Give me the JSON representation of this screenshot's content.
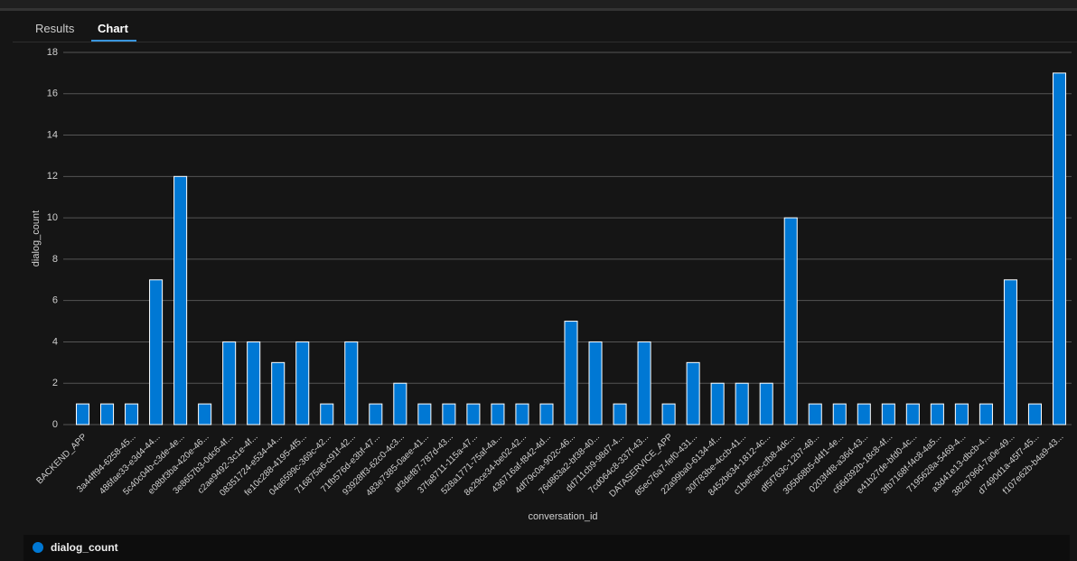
{
  "tabs": [
    "Results",
    "Chart"
  ],
  "chart_data": {
    "type": "bar",
    "categories": [
      "BACKEND_APP",
      null,
      "3a44ff94-6258-45...",
      "486fae33-e3d4-44...",
      "5c40c04b-c3de-4e...",
      "e08bf3ba-420e-46...",
      "3e8657b3-0dc6-4f...",
      "c2ae9492-3c1e-4f...",
      "08351724-e534-44...",
      "fe10c288-4195-4f5...",
      "04a6599c-369c-42...",
      "716875a6-c91f-42...",
      "71fb576d-e3bf-47...",
      "93928ff3-62c0-4c3...",
      "483e7385-0aee-41...",
      "af3def87-787d-43...",
      "37fa8711-115a-47...",
      "528a1771-75af-4a...",
      "8e29ce34-be02-42...",
      "436716af-f842-4d...",
      "4df79c0a-902c-46...",
      "76d863a2-bf38-40...",
      "dd711cb9-98d7-4...",
      "7cd064c8-337f-43...",
      "DATASERVICE_APP",
      "85ec76a7-fef0-431...",
      "22a99ba0-6134-4f...",
      "30f783be-4ccb-41...",
      "8452b634-1812-4c...",
      "c1bef5ac-cfb8-4dc...",
      "df5f763c-12b7-48...",
      "305b68b5-d4f1-4e...",
      "0203f4f8-a36d-43...",
      "c66d392b-18c8-4f...",
      "e41b27de-bfd0-4c...",
      "3fb7168f-f4c8-4a5...",
      "7195628a-5469-4...",
      "a3d41e13-dbcb-4...",
      "382a796d-7a0e-49...",
      "d7490d1a-45f7-45...",
      "f107e62b-b4a9-43..."
    ],
    "series": [
      {
        "name": "dialog_count",
        "color": "#0078d4",
        "values": [
          1,
          1,
          1,
          7,
          12,
          1,
          4,
          4,
          3,
          4,
          1,
          4,
          1,
          2,
          1,
          1,
          1,
          1,
          1,
          1,
          5,
          4,
          1,
          4,
          1,
          3,
          2,
          2,
          2,
          10,
          1,
          1,
          1,
          1,
          1,
          1,
          1,
          1,
          7,
          1,
          17
        ]
      }
    ],
    "xlabel": "conversation_id",
    "ylabel": "dialog_count",
    "ylim": [
      0,
      18
    ],
    "yticks": [
      0,
      2,
      4,
      6,
      8,
      10,
      12,
      14,
      16,
      18
    ],
    "grid": true
  }
}
